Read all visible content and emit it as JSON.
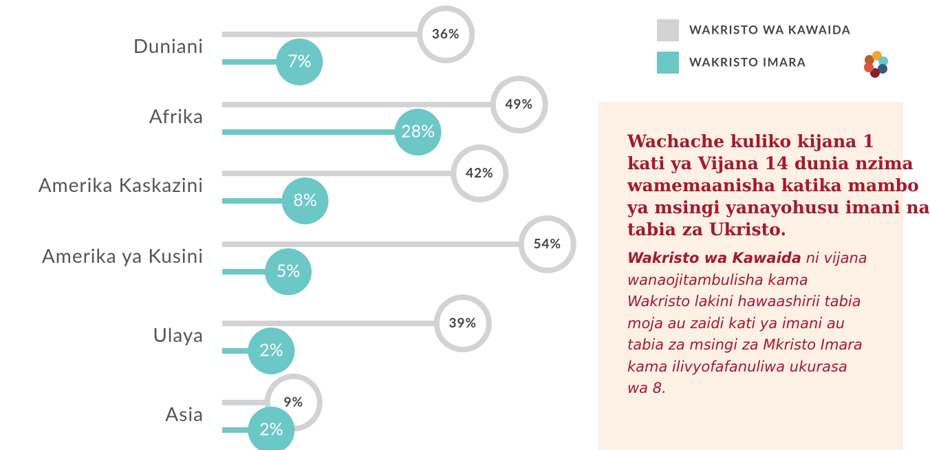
{
  "chart_data": {
    "type": "lollipop",
    "categories": [
      "Duniani",
      "Afrika",
      "Amerika Kaskazini",
      "Amerika ya Kusini",
      "Ulaya",
      "Asia"
    ],
    "series": [
      {
        "name": "WAKRISTO WA KAWAIDA",
        "color": "#d3d3d5",
        "values": [
          36,
          49,
          42,
          54,
          39,
          9
        ],
        "value_labels": [
          "36%",
          "49%",
          "42%",
          "54%",
          "39%",
          "9%"
        ]
      },
      {
        "name": "WAKRISTO IMARA",
        "color": "#6cc7c7",
        "values": [
          7,
          28,
          8,
          5,
          2,
          2
        ],
        "value_labels": [
          "7%",
          "28%",
          "8%",
          "5%",
          "2%",
          "2%"
        ]
      }
    ],
    "legend": "top-right"
  },
  "note": {
    "heading": [
      "Wachache kuliko kijana 1",
      "kati ya Vijana 14 dunia nzima",
      "wamemaanisha katika mambo",
      "ya msingi yanayohusu imani na",
      "tabia za Ukristo."
    ],
    "lead": "Wakristo wa Kawaida",
    "lines": [
      "ni vijana",
      "wanaojitambulisha kama",
      "Wakristo lakini hawaashirii tabia",
      "moja au zaidi kati ya imani au",
      "tabia za msingi za Mkristo Imara",
      "kama ilivyofafanuliwa ukurasa",
      "wa 8."
    ]
  }
}
